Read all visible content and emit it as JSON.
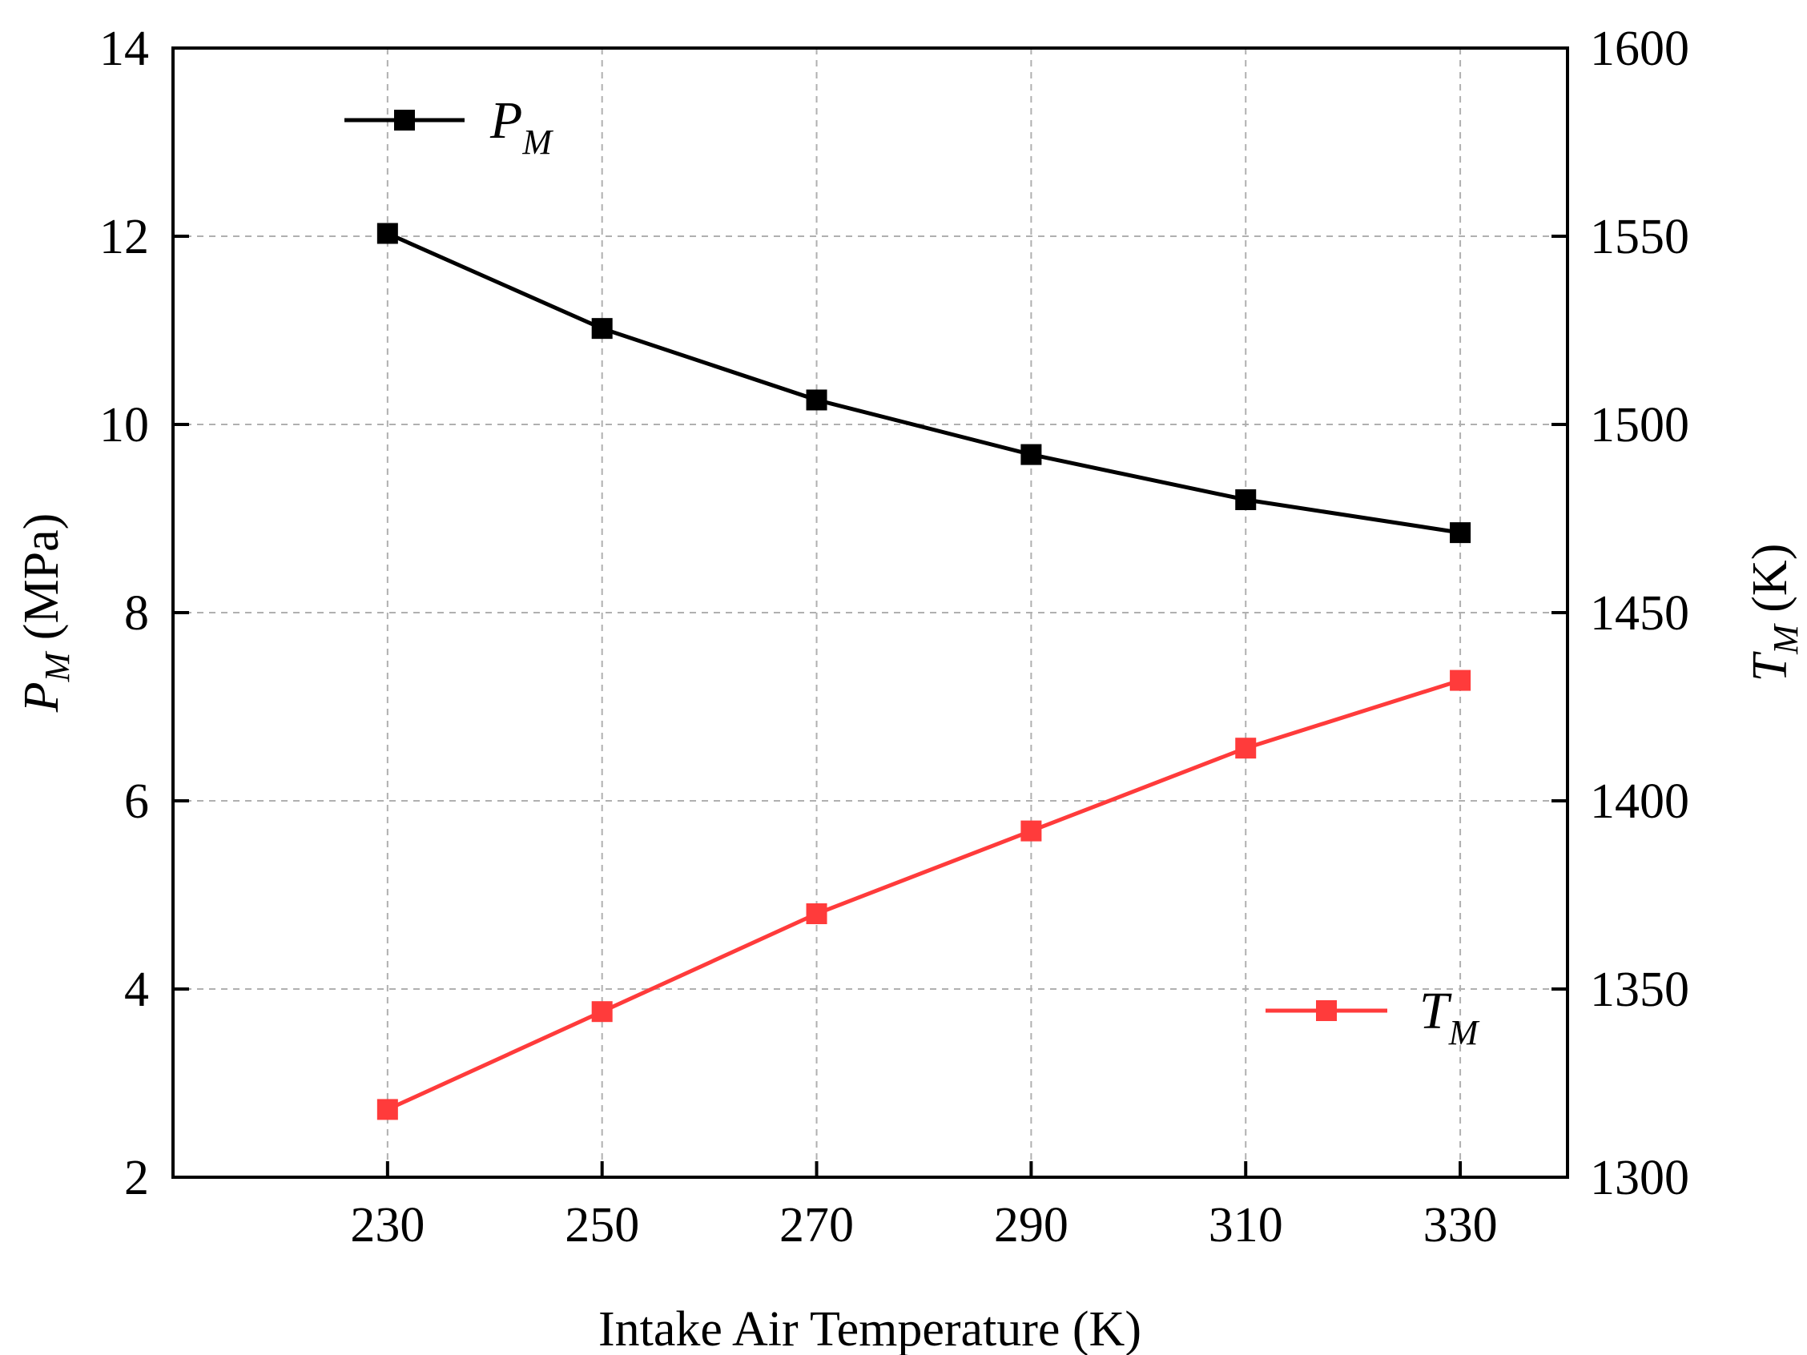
{
  "chart_data": {
    "type": "line",
    "xlabel": "Intake Air Temperature (K)",
    "x": [
      230,
      250,
      270,
      290,
      310,
      330
    ],
    "xlim": [
      210,
      340
    ],
    "xticks": [
      230,
      250,
      270,
      290,
      310,
      330
    ],
    "y_left": {
      "label_main": "P",
      "label_sub": "M",
      "label_unit": " (MPa)",
      "lim": [
        2,
        14
      ],
      "ticks": [
        2,
        4,
        6,
        8,
        10,
        12,
        14
      ]
    },
    "y_right": {
      "label_main": "T",
      "label_sub": "M",
      "label_unit": " (K)",
      "lim": [
        1300,
        1600
      ],
      "ticks": [
        1300,
        1350,
        1400,
        1450,
        1500,
        1550,
        1600
      ]
    },
    "grid": true,
    "series": [
      {
        "name_main": "P",
        "name_sub": "M",
        "axis": "left",
        "color": "#000000",
        "marker": "square",
        "legend_position": "top-left",
        "values": [
          12.03,
          11.02,
          10.26,
          9.68,
          9.2,
          8.85
        ]
      },
      {
        "name_main": "T",
        "name_sub": "M",
        "axis": "right",
        "color": "#ff3b3b",
        "marker": "square",
        "legend_position": "bottom-right",
        "values": [
          1318,
          1344,
          1370,
          1392,
          1414,
          1432
        ]
      }
    ]
  }
}
